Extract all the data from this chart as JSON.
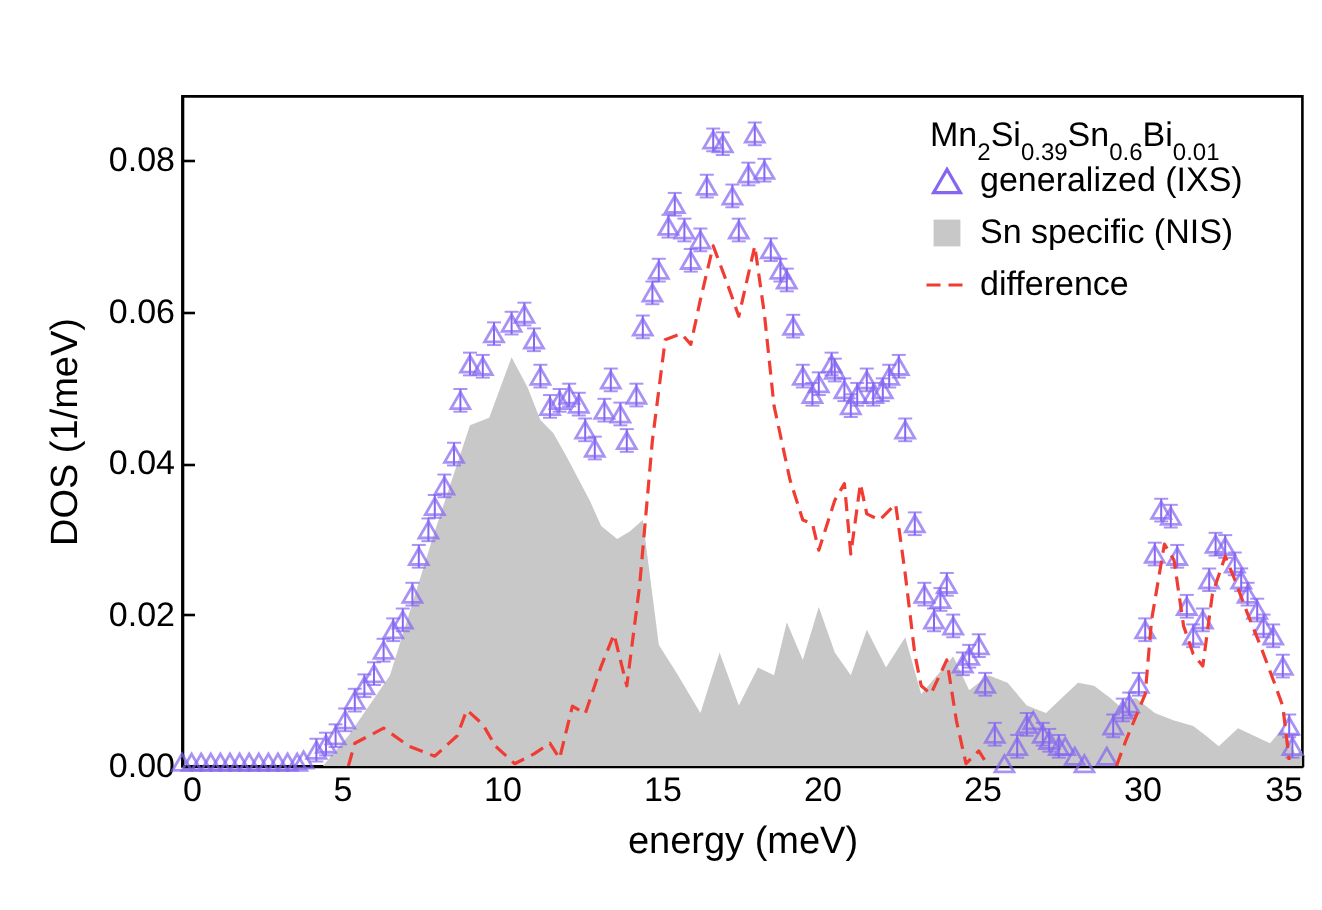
{
  "chart_data": {
    "type": "line",
    "xlabel": "energy (meV)",
    "ylabel": "DOS (1/meV)",
    "legend_title": "Mn$_{2}$Si$_{0.39}$Sn$_{0.6}$Bi$_{0.01}$",
    "legend": "top right",
    "grid": false,
    "xlim": [
      0,
      35
    ],
    "xticks": [
      0,
      5,
      10,
      15,
      20,
      25,
      30,
      35
    ],
    "ylim": [
      0,
      0.0885
    ],
    "yticks": [
      {
        "value": 0,
        "label": "0.00"
      },
      {
        "value": 0.02,
        "label": "0.02"
      },
      {
        "value": 0.04,
        "label": "0.04"
      },
      {
        "value": 0.06,
        "label": "0.06"
      },
      {
        "value": 0.08,
        "label": "0.08"
      }
    ],
    "series": [
      {
        "name": "generalized (IXS)",
        "type": "scatter",
        "marker": "triangle",
        "color": "#8466f2",
        "x": [
          0,
          0.3,
          0.6,
          0.9,
          1.2,
          1.5,
          1.8,
          2.1,
          2.4,
          2.7,
          3.0,
          3.3,
          3.6,
          3.8,
          4.2,
          4.5,
          4.8,
          5.1,
          5.4,
          5.7,
          6.0,
          6.3,
          6.6,
          6.9,
          7.2,
          7.4,
          7.7,
          7.9,
          8.2,
          8.5,
          8.7,
          9.0,
          9.4,
          9.75,
          10.3,
          10.7,
          11.0,
          11.2,
          11.5,
          11.8,
          12.1,
          12.4,
          12.6,
          12.9,
          13.2,
          13.4,
          13.7,
          13.9,
          14.2,
          14.4,
          14.7,
          14.9,
          15.2,
          15.4,
          15.7,
          15.9,
          16.2,
          16.4,
          16.6,
          16.9,
          17.2,
          17.4,
          17.7,
          17.9,
          18.2,
          18.4,
          18.7,
          18.9,
          19.1,
          19.4,
          19.7,
          19.9,
          20.3,
          20.4,
          20.7,
          20.9,
          21.1,
          21.4,
          21.6,
          21.9,
          22.1,
          22.4,
          22.6,
          22.9,
          23.2,
          23.5,
          23.7,
          23.9,
          24.1,
          24.4,
          24.6,
          24.9,
          25.1,
          25.4,
          25.7,
          26.1,
          26.4,
          26.6,
          26.9,
          27.1,
          27.4,
          27.6,
          27.9,
          28.2,
          28.9,
          29.1,
          29.4,
          29.6,
          29.9,
          30.1,
          30.4,
          30.6,
          30.9,
          31.1,
          31.4,
          31.6,
          31.9,
          32.1,
          32.3,
          32.6,
          32.9,
          33.1,
          33.3,
          33.6,
          33.8,
          34.1,
          34.4,
          34.6,
          34.7
        ],
        "values": [
          0.0005,
          0.0005,
          0.0005,
          0.0005,
          0.0005,
          0.0005,
          0.0005,
          0.0005,
          0.0005,
          0.0005,
          0.0005,
          0.0005,
          0.0005,
          0.0008,
          0.0021,
          0.0029,
          0.004,
          0.0061,
          0.0087,
          0.0106,
          0.0122,
          0.0153,
          0.018,
          0.0193,
          0.0227,
          0.0277,
          0.0312,
          0.0343,
          0.037,
          0.0412,
          0.0483,
          0.0531,
          0.0528,
          0.0571,
          0.0585,
          0.0597,
          0.0563,
          0.0515,
          0.0475,
          0.0483,
          0.049,
          0.0478,
          0.0444,
          0.042,
          0.047,
          0.051,
          0.0465,
          0.043,
          0.049,
          0.058,
          0.0625,
          0.0655,
          0.0713,
          0.0742,
          0.0708,
          0.0668,
          0.0695,
          0.0766,
          0.0827,
          0.0822,
          0.0753,
          0.0708,
          0.0782,
          0.0835,
          0.0787,
          0.0682,
          0.0655,
          0.0642,
          0.0581,
          0.0515,
          0.0491,
          0.0505,
          0.0531,
          0.0523,
          0.0497,
          0.0476,
          0.0491,
          0.051,
          0.0491,
          0.0497,
          0.0515,
          0.0528,
          0.0444,
          0.032,
          0.0227,
          0.0193,
          0.022,
          0.024,
          0.0185,
          0.0135,
          0.0145,
          0.0159,
          0.0108,
          0.0042,
          0.0003,
          0.0026,
          0.0055,
          0.006,
          0.0042,
          0.0034,
          0.0026,
          0.0026,
          0.0013,
          0.0003,
          0.0013,
          0.0053,
          0.0074,
          0.0082,
          0.0108,
          0.018,
          0.028,
          0.0338,
          0.033,
          0.0277,
          0.0211,
          0.0172,
          0.0193,
          0.0246,
          0.0293,
          0.029,
          0.0267,
          0.0246,
          0.0227,
          0.0206,
          0.0185,
          0.0172,
          0.0132,
          0.0053,
          0.0026
        ],
        "errors": [
          null,
          null,
          null,
          null,
          null,
          null,
          null,
          null,
          null,
          null,
          null,
          null,
          null,
          null,
          0.0015,
          0.0015,
          0.0015,
          0.0015,
          0.0015,
          0.0015,
          0.0015,
          0.0015,
          0.0015,
          0.0015,
          0.0015,
          0.0015,
          0.0015,
          0.0015,
          0.0015,
          0.0015,
          0.0015,
          0.0015,
          0.0015,
          0.0015,
          0.0015,
          0.0015,
          0.0015,
          0.0015,
          0.0015,
          0.0015,
          0.0015,
          0.0015,
          0.0015,
          0.0015,
          0.0015,
          0.0015,
          0.0015,
          0.0015,
          0.0015,
          0.0015,
          0.0015,
          0.0015,
          0.0015,
          0.0015,
          0.0015,
          0.0015,
          0.0015,
          0.0015,
          0.0015,
          0.0015,
          0.0015,
          0.0015,
          0.0015,
          0.0015,
          0.0015,
          0.0015,
          0.0015,
          0.0015,
          0.0015,
          0.0015,
          0.0015,
          0.0015,
          0.0015,
          0.0015,
          0.0015,
          0.0015,
          0.0015,
          0.0015,
          0.0015,
          0.0015,
          0.0015,
          0.0015,
          0.0015,
          0.0015,
          0.0015,
          0.0015,
          0.0015,
          0.0015,
          0.0015,
          0.0015,
          0.0015,
          0.0015,
          0.0015,
          0.0015,
          null,
          0.0015,
          0.0015,
          null,
          0.0015,
          0.0015,
          0.0015,
          null,
          null,
          null,
          null,
          0.0015,
          0.0015,
          0.0015,
          0.0015,
          0.0015,
          0.0015,
          0.0015,
          0.0015,
          0.0015,
          0.0015,
          0.0015,
          0.0015,
          0.0015,
          0.0015,
          0.0015,
          0.0015,
          0.0015,
          0.0015,
          0.0015,
          0.0015,
          0.0015,
          0.0015,
          0.0015,
          0.0015
        ]
      },
      {
        "name": "Sn specific (NIS)",
        "type": "area",
        "color": "#c8c8c8",
        "x": [
          0,
          3.5,
          4.4,
          5.2,
          6.5,
          7.9,
          9.0,
          9.6,
          10.3,
          10.8,
          11.2,
          11.6,
          12.0,
          12.75,
          13.1,
          13.6,
          14.0,
          14.4,
          14.9,
          15.5,
          16.2,
          16.8,
          17.4,
          18.0,
          18.5,
          18.9,
          19.4,
          19.9,
          20.4,
          20.9,
          21.4,
          22.0,
          22.6,
          23.1,
          23.6,
          24.1,
          24.6,
          25.2,
          25.8,
          26.4,
          27.0,
          27.5,
          28.0,
          28.5,
          29.0,
          29.3,
          29.8,
          30.4,
          31.0,
          31.6,
          32.0,
          32.4,
          33.0,
          33.5,
          34.0,
          34.4,
          34.8,
          35
        ],
        "values": [
          0,
          0,
          0,
          0.004,
          0.012,
          0.031,
          0.045,
          0.046,
          0.054,
          0.05,
          0.0457,
          0.044,
          0.041,
          0.035,
          0.0317,
          0.03,
          0.031,
          0.0325,
          0.016,
          0.012,
          0.007,
          0.015,
          0.008,
          0.013,
          0.012,
          0.019,
          0.014,
          0.021,
          0.015,
          0.012,
          0.018,
          0.013,
          0.017,
          0.0095,
          0.012,
          0.0145,
          0.01,
          0.012,
          0.011,
          0.008,
          0.007,
          0.009,
          0.011,
          0.0106,
          0.009,
          0.0079,
          0.009,
          0.007,
          0.006,
          0.0053,
          0.004,
          0.0026,
          0.005,
          0.004,
          0.003,
          0.005,
          0.0016,
          0.002
        ]
      },
      {
        "name": "difference",
        "line_style": "dashed",
        "color": "#f03c32",
        "x": [
          5.2,
          5.4,
          6.3,
          7.1,
          7.9,
          8.6,
          8.9,
          9.4,
          9.8,
          10.4,
          11.0,
          11.5,
          11.8,
          12.2,
          12.6,
          13.1,
          13.5,
          13.9,
          14.3,
          14.7,
          15.1,
          15.6,
          15.9,
          16.2,
          16.6,
          17.0,
          17.4,
          17.9,
          18.2,
          18.5,
          19.0,
          19.4,
          19.7,
          19.9,
          20.4,
          20.7,
          20.9,
          21.2,
          21.4,
          21.8,
          22.3,
          22.6,
          22.9,
          23.1,
          23.4,
          23.9,
          24.2,
          24.5,
          24.9,
          25.2,
          27.0,
          29.2,
          29.5,
          30.1,
          30.3,
          30.7,
          31.0,
          31.3,
          31.6,
          31.9,
          32.2,
          32.6,
          32.9,
          33.3,
          33.7,
          34.1,
          34.4,
          34.6
        ],
        "values": [
          0,
          0.003,
          0.005,
          0.0026,
          0.0013,
          0.004,
          0.0074,
          0.0055,
          0.0026,
          0.0003,
          0.0016,
          0.003,
          0.001,
          0.0079,
          0.0069,
          0.0132,
          0.0174,
          0.0106,
          0.0238,
          0.043,
          0.0563,
          0.0571,
          0.0557,
          0.0616,
          0.0687,
          0.0642,
          0.0594,
          0.0687,
          0.0597,
          0.0476,
          0.0378,
          0.0325,
          0.032,
          0.0285,
          0.0351,
          0.0373,
          0.028,
          0.0373,
          0.0333,
          0.0325,
          0.0346,
          0.0254,
          0.0148,
          0.0106,
          0.0095,
          0.014,
          0.006,
          0.0003,
          0.002,
          0,
          null,
          0,
          0.0034,
          0.0095,
          0.0193,
          0.0293,
          0.0272,
          0.0185,
          0.0148,
          0.0132,
          0.0227,
          0.0277,
          0.0246,
          0.0201,
          0.0159,
          0.0114,
          0.0079,
          0.0008
        ]
      }
    ]
  }
}
